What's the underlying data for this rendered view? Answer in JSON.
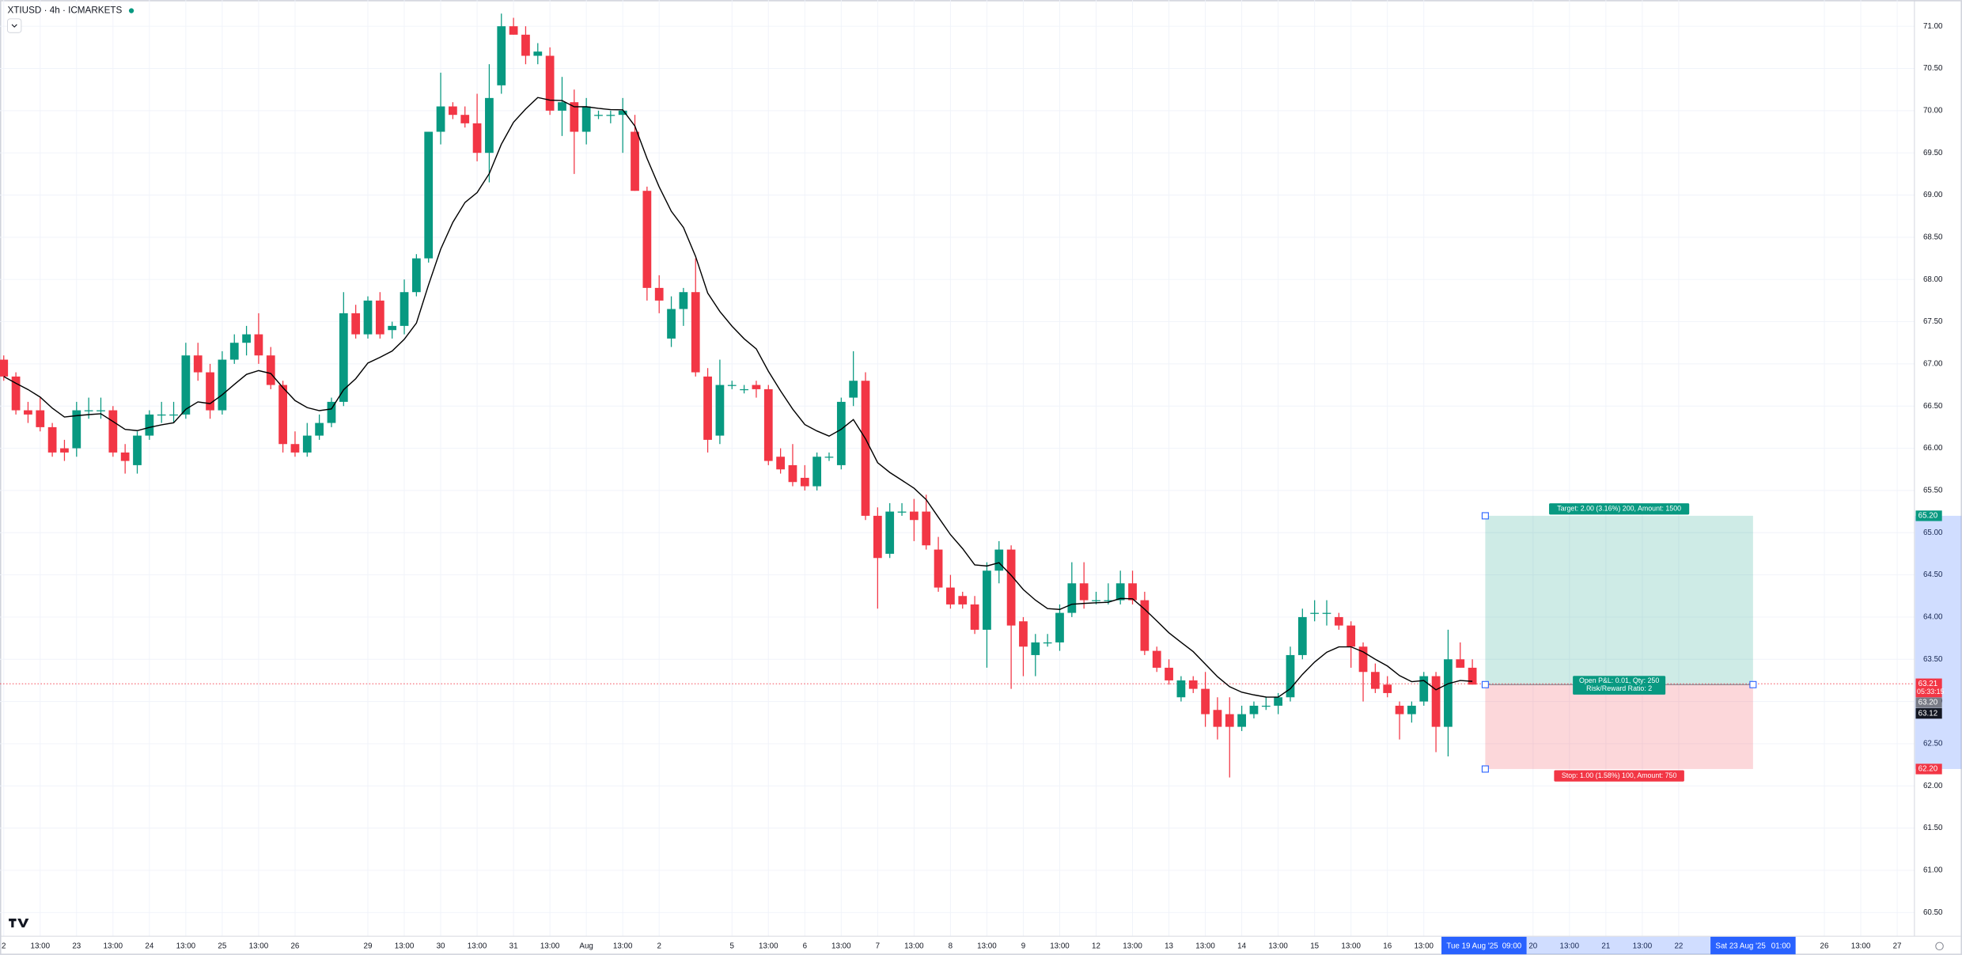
{
  "header": {
    "symbol_line": "XTIUSD · 4h · ICMARKETS"
  },
  "chart_data": {
    "type": "candlestick",
    "up_color": "#089981",
    "down_color": "#f23645",
    "ma_color": "#000000",
    "grid": true,
    "ylim": [
      60.22,
      71.31
    ],
    "yticks": [
      {
        "value": 71,
        "label": "71.00"
      },
      {
        "value": 70.5,
        "label": "70.50"
      },
      {
        "value": 70,
        "label": "70.00"
      },
      {
        "value": 69.5,
        "label": "69.50"
      },
      {
        "value": 69,
        "label": "69.00"
      },
      {
        "value": 68.5,
        "label": "68.50"
      },
      {
        "value": 68,
        "label": "68.00"
      },
      {
        "value": 67.5,
        "label": "67.50"
      },
      {
        "value": 67,
        "label": "67.00"
      },
      {
        "value": 66.5,
        "label": "66.50"
      },
      {
        "value": 66,
        "label": "66.00"
      },
      {
        "value": 65.5,
        "label": "65.50"
      },
      {
        "value": 65,
        "label": "65.00"
      },
      {
        "value": 64.5,
        "label": "64.50"
      },
      {
        "value": 64,
        "label": "64.00"
      },
      {
        "value": 63.5,
        "label": "63.50"
      },
      {
        "value": 63,
        "label": "63.00"
      },
      {
        "value": 62.5,
        "label": "62.50"
      },
      {
        "value": 62,
        "label": "62.00"
      },
      {
        "value": 61.5,
        "label": "61.50"
      },
      {
        "value": 61,
        "label": "61.00"
      },
      {
        "value": 60.5,
        "label": "60.50"
      }
    ],
    "xtick_labels": [
      "2",
      "13:00",
      "23",
      "13:00",
      "24",
      "13:00",
      "25",
      "13:00",
      "26",
      null,
      "29",
      "13:00",
      "30",
      "13:00",
      "31",
      "13:00",
      "Aug",
      "13:00",
      "2",
      null,
      "5",
      "13:00",
      "6",
      "13:00",
      "7",
      "13:00",
      "8",
      "13:00",
      "9",
      "13:00",
      "12",
      "13:00",
      "13",
      "13:00",
      "14",
      "13:00",
      "15",
      "13:00",
      "16",
      "13:00",
      null,
      null,
      "20",
      "13:00",
      "21",
      "13:00",
      "22",
      null,
      null,
      null,
      "26",
      "13:00",
      "27"
    ],
    "ohlc": [
      [
        67.05,
        67.1,
        66.8,
        66.85
      ],
      [
        66.85,
        66.9,
        66.4,
        66.45
      ],
      [
        66.45,
        66.55,
        66.3,
        66.4
      ],
      [
        66.45,
        66.6,
        66.2,
        66.25
      ],
      [
        66.25,
        66.3,
        65.9,
        65.95
      ],
      [
        66.0,
        66.1,
        65.85,
        65.95
      ],
      [
        66.0,
        66.55,
        65.9,
        66.45
      ],
      [
        66.45,
        66.6,
        66.35,
        66.45
      ],
      [
        66.45,
        66.6,
        66.35,
        66.45
      ],
      [
        66.45,
        66.5,
        65.9,
        65.95
      ],
      [
        65.95,
        66.05,
        65.7,
        65.85
      ],
      [
        65.8,
        66.2,
        65.7,
        66.15
      ],
      [
        66.15,
        66.45,
        66.1,
        66.4
      ],
      [
        66.4,
        66.55,
        66.3,
        66.4
      ],
      [
        66.4,
        66.55,
        66.3,
        66.4
      ],
      [
        66.4,
        67.25,
        66.35,
        67.1
      ],
      [
        67.1,
        67.25,
        66.8,
        66.9
      ],
      [
        66.9,
        67.0,
        66.35,
        66.45
      ],
      [
        66.45,
        67.15,
        66.4,
        67.05
      ],
      [
        67.05,
        67.35,
        67.0,
        67.25
      ],
      [
        67.25,
        67.45,
        67.1,
        67.35
      ],
      [
        67.35,
        67.6,
        67.0,
        67.1
      ],
      [
        67.1,
        67.2,
        66.7,
        66.75
      ],
      [
        66.75,
        66.8,
        65.95,
        66.05
      ],
      [
        66.05,
        66.2,
        65.9,
        65.95
      ],
      [
        65.95,
        66.3,
        65.9,
        66.15
      ],
      [
        66.15,
        66.4,
        66.1,
        66.3
      ],
      [
        66.3,
        66.6,
        66.25,
        66.55
      ],
      [
        66.55,
        67.85,
        66.5,
        67.6
      ],
      [
        67.6,
        67.7,
        67.3,
        67.35
      ],
      [
        67.35,
        67.8,
        67.3,
        67.75
      ],
      [
        67.75,
        67.85,
        67.3,
        67.35
      ],
      [
        67.4,
        67.5,
        67.3,
        67.45
      ],
      [
        67.45,
        68.0,
        67.35,
        67.85
      ],
      [
        67.85,
        68.3,
        67.8,
        68.25
      ],
      [
        68.25,
        69.75,
        68.2,
        69.75
      ],
      [
        69.75,
        70.45,
        69.6,
        70.05
      ],
      [
        70.05,
        70.1,
        69.9,
        69.95
      ],
      [
        69.95,
        70.05,
        69.8,
        69.85
      ],
      [
        69.85,
        70.2,
        69.4,
        69.5
      ],
      [
        69.5,
        70.55,
        69.15,
        70.15
      ],
      [
        70.3,
        71.15,
        70.2,
        71.0
      ],
      [
        71.0,
        71.1,
        70.9,
        70.9
      ],
      [
        70.9,
        71.0,
        70.55,
        70.65
      ],
      [
        70.65,
        70.8,
        70.55,
        70.7
      ],
      [
        70.65,
        70.75,
        69.95,
        70.0
      ],
      [
        70.0,
        70.4,
        69.7,
        70.1
      ],
      [
        70.1,
        70.25,
        69.25,
        69.75
      ],
      [
        69.75,
        70.15,
        69.6,
        70.05
      ],
      [
        69.95,
        70.0,
        69.9,
        69.95
      ],
      [
        69.95,
        70.0,
        69.85,
        69.95
      ],
      [
        69.95,
        70.15,
        69.5,
        70.0
      ],
      [
        69.75,
        69.95,
        69.05,
        69.05
      ],
      [
        69.05,
        69.1,
        67.75,
        67.9
      ],
      [
        67.9,
        68.05,
        67.6,
        67.75
      ],
      [
        67.3,
        67.8,
        67.2,
        67.65
      ],
      [
        67.65,
        67.9,
        67.45,
        67.85
      ],
      [
        67.85,
        68.25,
        66.85,
        66.9
      ],
      [
        66.85,
        66.95,
        65.95,
        66.1
      ],
      [
        66.15,
        67.05,
        66.05,
        66.75
      ],
      [
        66.75,
        66.8,
        66.7,
        66.75
      ],
      [
        66.7,
        66.75,
        66.65,
        66.7
      ],
      [
        66.75,
        66.8,
        66.6,
        66.7
      ],
      [
        66.7,
        66.75,
        65.8,
        65.85
      ],
      [
        65.9,
        66.0,
        65.7,
        65.75
      ],
      [
        65.8,
        66.05,
        65.55,
        65.6
      ],
      [
        65.65,
        65.8,
        65.5,
        65.55
      ],
      [
        65.55,
        65.95,
        65.5,
        65.9
      ],
      [
        65.9,
        65.95,
        65.85,
        65.9
      ],
      [
        65.8,
        66.6,
        65.75,
        66.55
      ],
      [
        66.6,
        67.15,
        66.5,
        66.8
      ],
      [
        66.8,
        66.9,
        65.15,
        65.2
      ],
      [
        65.2,
        65.3,
        64.1,
        64.7
      ],
      [
        64.75,
        65.35,
        64.7,
        65.25
      ],
      [
        65.25,
        65.35,
        65.2,
        65.25
      ],
      [
        65.25,
        65.4,
        64.9,
        65.15
      ],
      [
        65.25,
        65.45,
        64.8,
        64.85
      ],
      [
        64.8,
        64.95,
        64.3,
        64.35
      ],
      [
        64.35,
        64.5,
        64.1,
        64.15
      ],
      [
        64.25,
        64.3,
        64.1,
        64.15
      ],
      [
        64.15,
        64.25,
        63.8,
        63.85
      ],
      [
        63.85,
        64.65,
        63.4,
        64.55
      ],
      [
        64.55,
        64.9,
        64.4,
        64.8
      ],
      [
        64.8,
        64.85,
        63.15,
        63.9
      ],
      [
        63.95,
        64.0,
        63.3,
        63.65
      ],
      [
        63.55,
        63.8,
        63.3,
        63.7
      ],
      [
        63.7,
        63.8,
        63.65,
        63.7
      ],
      [
        63.7,
        64.15,
        63.6,
        64.05
      ],
      [
        64.05,
        64.65,
        64.0,
        64.4
      ],
      [
        64.4,
        64.65,
        64.1,
        64.2
      ],
      [
        64.2,
        64.3,
        64.15,
        64.2
      ],
      [
        64.2,
        64.4,
        64.15,
        64.2
      ],
      [
        64.2,
        64.55,
        64.15,
        64.4
      ],
      [
        64.4,
        64.55,
        64.15,
        64.2
      ],
      [
        64.2,
        64.3,
        63.55,
        63.6
      ],
      [
        63.6,
        63.65,
        63.35,
        63.4
      ],
      [
        63.4,
        63.5,
        63.2,
        63.25
      ],
      [
        63.05,
        63.3,
        63.0,
        63.25
      ],
      [
        63.25,
        63.3,
        63.1,
        63.15
      ],
      [
        63.15,
        63.35,
        62.7,
        62.85
      ],
      [
        62.9,
        63.05,
        62.55,
        62.7
      ],
      [
        62.85,
        63.05,
        62.1,
        62.7
      ],
      [
        62.7,
        62.95,
        62.65,
        62.85
      ],
      [
        62.85,
        63.0,
        62.8,
        62.95
      ],
      [
        62.95,
        63.05,
        62.9,
        62.95
      ],
      [
        62.95,
        63.1,
        62.85,
        63.05
      ],
      [
        63.05,
        63.65,
        63.0,
        63.55
      ],
      [
        63.55,
        64.1,
        63.5,
        64.0
      ],
      [
        64.05,
        64.2,
        63.95,
        64.05
      ],
      [
        64.05,
        64.2,
        63.9,
        64.05
      ],
      [
        64.0,
        64.05,
        63.85,
        63.9
      ],
      [
        63.9,
        63.95,
        63.4,
        63.65
      ],
      [
        63.65,
        63.7,
        63.0,
        63.35
      ],
      [
        63.35,
        63.45,
        63.1,
        63.15
      ],
      [
        63.2,
        63.3,
        63.05,
        63.1
      ],
      [
        62.95,
        63.0,
        62.55,
        62.85
      ],
      [
        62.85,
        63.0,
        62.75,
        62.95
      ],
      [
        63.0,
        63.35,
        62.95,
        63.3
      ],
      [
        63.3,
        63.35,
        62.4,
        62.7
      ],
      [
        62.7,
        63.85,
        62.35,
        63.5
      ],
      [
        63.5,
        63.7,
        63.4,
        63.4
      ],
      [
        63.4,
        63.5,
        63.2,
        63.2
      ]
    ],
    "position": {
      "target": 65.2,
      "entry": 63.2,
      "stop": 62.2,
      "target_label": "Target: 2.00 (3.16%) 200, Amount: 1500",
      "open_label": "Open P&L: 0.01, Qty: 250",
      "ratio_label": "Risk/Reward Ratio: 2",
      "stop_label": "Stop: 1.00 (1.58%) 100, Amount: 750"
    },
    "last_price": 63.21,
    "price_labels": [
      {
        "value": 65.2,
        "label": "65.20",
        "color": "#089981"
      },
      {
        "value": 63.21,
        "label": "63.21",
        "color": "#f23645",
        "countdown": "05:33:15"
      },
      {
        "value": 63.2,
        "label": "63.20",
        "color": "#787b86"
      },
      {
        "value": 63.12,
        "label": "63.12",
        "color": "#131722"
      },
      {
        "value": 62.2,
        "label": "62.20",
        "color": "#f23645"
      }
    ],
    "date_markers": [
      "Tue 19 Aug '25",
      "09:00",
      "Sat 23 Aug '25",
      "01:00"
    ]
  }
}
